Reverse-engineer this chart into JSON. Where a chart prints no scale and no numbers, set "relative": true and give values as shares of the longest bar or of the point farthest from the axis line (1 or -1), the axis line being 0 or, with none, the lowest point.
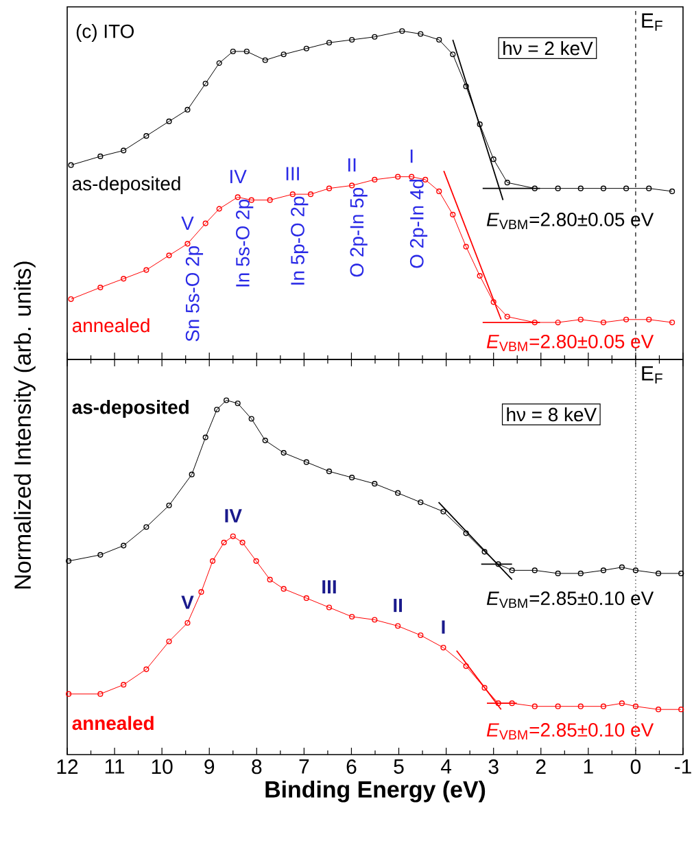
{
  "chart_data": [
    {
      "type": "line",
      "relative": true,
      "marker": "circle",
      "ylabel": "Normalized Intensity (arb. units)",
      "xlim": [
        12,
        -1
      ],
      "xticks": [
        12,
        11,
        10,
        9,
        8,
        7,
        6,
        5,
        4,
        3,
        2,
        1,
        0,
        -1
      ],
      "tick_labels": false,
      "series": [
        {
          "name": "as-deposited",
          "color": "#000000",
          "x": [
            11.92,
            11.3,
            10.81,
            10.33,
            9.85,
            9.46,
            9.08,
            8.79,
            8.5,
            8.21,
            7.82,
            7.43,
            6.95,
            6.47,
            5.99,
            5.51,
            4.93,
            4.54,
            4.15,
            3.86,
            3.58,
            3.29,
            3.0,
            2.71,
            2.13,
            1.64,
            1.16,
            0.68,
            0.2,
            -0.28,
            -0.77
          ],
          "values": [
            0.54,
            0.57,
            0.59,
            0.64,
            0.69,
            0.73,
            0.82,
            0.89,
            0.93,
            0.93,
            0.9,
            0.92,
            0.94,
            0.96,
            0.97,
            0.98,
            1.0,
            0.99,
            0.97,
            0.92,
            0.81,
            0.68,
            0.56,
            0.48,
            0.46,
            0.46,
            0.46,
            0.46,
            0.46,
            0.46,
            0.45
          ]
        },
        {
          "name": "annealed",
          "color": "#ff0000",
          "x": [
            11.92,
            11.3,
            10.81,
            10.33,
            9.85,
            9.46,
            9.08,
            8.79,
            8.4,
            8.11,
            7.72,
            7.24,
            6.86,
            6.47,
            5.99,
            5.51,
            5.02,
            4.73,
            4.44,
            4.15,
            3.86,
            3.58,
            3.29,
            3.0,
            2.71,
            2.13,
            1.64,
            1.16,
            0.68,
            0.2,
            -0.28,
            -0.77
          ],
          "values": [
            0.08,
            0.12,
            0.15,
            0.18,
            0.23,
            0.27,
            0.34,
            0.39,
            0.43,
            0.42,
            0.42,
            0.44,
            0.44,
            0.46,
            0.47,
            0.49,
            0.5,
            0.5,
            0.49,
            0.45,
            0.37,
            0.26,
            0.16,
            0.07,
            0.02,
            0.0,
            0.0,
            0.01,
            0.0,
            0.01,
            0.01,
            0.0
          ]
        },
        {
          "type": "line",
          "marker": "none",
          "color": "#000000",
          "x": [
            3.86,
            2.8
          ],
          "values": [
            0.97,
            0.42
          ]
        },
        {
          "type": "line",
          "marker": "none",
          "color": "#000000",
          "x": [
            3.23,
            2.02
          ],
          "values": [
            0.46,
            0.46
          ]
        },
        {
          "type": "line",
          "marker": "none",
          "color": "#ff0000",
          "x": [
            4.05,
            2.84
          ],
          "values": [
            0.52,
            0.01
          ]
        },
        {
          "type": "line",
          "marker": "none",
          "color": "#ff0000",
          "x": [
            3.23,
            2.02
          ],
          "values": [
            0.0,
            0.0
          ]
        }
      ],
      "ref_lines": [
        {
          "axis": "x",
          "value": 0,
          "label": "E$_{F}$",
          "line_style": "dashed"
        }
      ],
      "annotations": [
        "(c) ITO",
        "hν = 2 keV",
        "*E*$_{VBM}$=2.80±0.05 eV",
        "*E*$_{VBM}$=2.80±0.05 eV",
        {
          "text": "V",
          "x": 9.46,
          "y": 0.27
        },
        {
          "text": "IV",
          "x": 8.4,
          "y": 0.43
        },
        {
          "text": "III",
          "x": 7.24,
          "y": 0.44
        },
        {
          "text": "II",
          "x": 5.99,
          "y": 0.47
        },
        {
          "text": "I",
          "x": 4.73,
          "y": 0.5
        },
        {
          "text": "Sn 5s-O 2p",
          "x": 9.46,
          "y": 0.27
        },
        {
          "text": "In 5s-O 2p",
          "x": 8.4,
          "y": 0.43
        },
        {
          "text": "In 5p-O 2p",
          "x": 7.24,
          "y": 0.44
        },
        {
          "text": "O 2p-In 5p",
          "x": 5.99,
          "y": 0.47
        },
        {
          "text": "O 2p-In 4d",
          "x": 4.73,
          "y": 0.5
        }
      ]
    },
    {
      "type": "line",
      "relative": true,
      "marker": "circle",
      "xlabel": "Binding Energy (eV)",
      "xlim": [
        12,
        -1
      ],
      "xticks": [
        12,
        11,
        10,
        9,
        8,
        7,
        6,
        5,
        4,
        3,
        2,
        1,
        0,
        -1
      ],
      "tick_labels": "x",
      "series": [
        {
          "name": "as-deposited",
          "color": "#000000",
          "x": [
            11.97,
            11.3,
            10.81,
            10.33,
            9.85,
            9.37,
            9.08,
            8.84,
            8.64,
            8.4,
            8.11,
            7.82,
            7.43,
            6.95,
            6.47,
            5.99,
            5.51,
            5.02,
            4.54,
            4.06,
            3.58,
            3.19,
            2.9,
            2.61,
            2.13,
            1.64,
            1.16,
            0.68,
            0.29,
            0.0,
            -0.48,
            -0.96
          ],
          "values": [
            0.48,
            0.5,
            0.53,
            0.59,
            0.66,
            0.76,
            0.88,
            0.97,
            1.0,
            0.99,
            0.94,
            0.87,
            0.83,
            0.8,
            0.77,
            0.75,
            0.73,
            0.7,
            0.67,
            0.64,
            0.57,
            0.51,
            0.47,
            0.45,
            0.45,
            0.44,
            0.44,
            0.45,
            0.46,
            0.45,
            0.44,
            0.44
          ]
        },
        {
          "name": "annealed",
          "color": "#ff0000",
          "x": [
            11.97,
            11.3,
            10.81,
            10.33,
            9.85,
            9.46,
            9.17,
            8.93,
            8.69,
            8.5,
            8.3,
            8.01,
            7.72,
            7.43,
            6.95,
            6.47,
            5.99,
            5.51,
            5.02,
            4.54,
            4.06,
            3.58,
            3.19,
            2.9,
            2.61,
            2.13,
            1.64,
            1.16,
            0.68,
            0.29,
            0.0,
            -0.48,
            -0.96
          ],
          "values": [
            0.05,
            0.05,
            0.08,
            0.13,
            0.22,
            0.28,
            0.38,
            0.48,
            0.54,
            0.56,
            0.54,
            0.48,
            0.42,
            0.39,
            0.36,
            0.33,
            0.3,
            0.29,
            0.27,
            0.24,
            0.2,
            0.14,
            0.07,
            0.02,
            0.02,
            0.01,
            0.01,
            0.01,
            0.01,
            0.02,
            0.01,
            0.0,
            0.0
          ]
        },
        {
          "type": "line",
          "marker": "none",
          "color": "#000000",
          "x": [
            4.16,
            2.61
          ],
          "values": [
            0.67,
            0.42
          ]
        },
        {
          "type": "line",
          "marker": "none",
          "color": "#000000",
          "x": [
            3.26,
            2.61
          ],
          "values": [
            0.47,
            0.47
          ]
        },
        {
          "type": "line",
          "marker": "none",
          "color": "#ff0000",
          "x": [
            3.78,
            2.84
          ],
          "values": [
            0.19,
            0.0
          ]
        },
        {
          "type": "line",
          "marker": "none",
          "color": "#ff0000",
          "x": [
            3.14,
            2.51
          ],
          "values": [
            0.02,
            0.02
          ]
        }
      ],
      "ref_lines": [
        {
          "axis": "x",
          "value": 0,
          "label": "E$_{F}$",
          "line_style": "dotted"
        }
      ],
      "annotations": [
        "hν = 8 keV",
        "*E*$_{VBM}$=2.85±0.10 eV",
        "*E*$_{VBM}$=2.85±0.10 eV",
        {
          "text": "V",
          "x": 9.46,
          "y": 0.28
        },
        {
          "text": "IV",
          "x": 8.5,
          "y": 0.56
        },
        {
          "text": "III",
          "x": 6.47,
          "y": 0.33
        },
        {
          "text": "II",
          "x": 5.02,
          "y": 0.27
        },
        {
          "text": "I",
          "x": 4.06,
          "y": 0.2
        }
      ]
    }
  ]
}
